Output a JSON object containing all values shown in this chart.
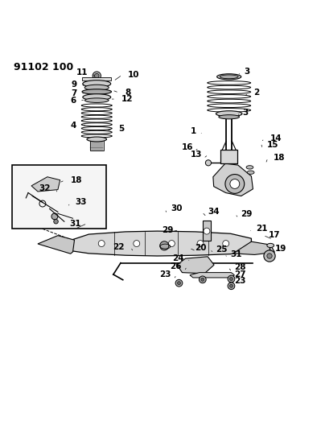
{
  "title_code": "91102 100",
  "bg_color": "#ffffff",
  "line_color": "#000000",
  "fig_width": 3.99,
  "fig_height": 5.33,
  "dpi": 100,
  "title_fontsize": 9,
  "label_fontsize": 7.5
}
